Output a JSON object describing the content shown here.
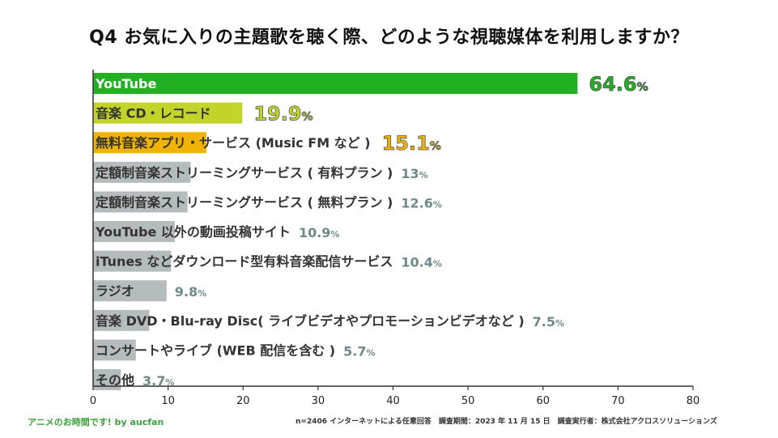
{
  "title": "Q4 お気に入りの主題歌を聴く際、どのような視聴媒体を利用しますか？",
  "footer": {
    "credit": "アニメのお時間です! by aucfan",
    "note": "n=2406 インターネットによる任意回答　調査期間：2023 年 11 月 15 日　調査実行者：株式会社アクロスソリューションズ"
  },
  "colors": {
    "top1": "#22b022",
    "top2": "#c2d42a",
    "top3": "#f0b400",
    "other": "#b5bcbd",
    "value_other": "#6f8a8a",
    "axis": "#333333"
  },
  "chart_data": {
    "type": "bar",
    "orientation": "horizontal",
    "title": "Q4 お気に入りの主題歌を聴く際、どのような視聴媒体を利用しますか？",
    "categories": [
      "YouTube",
      "音楽 CD・レコード",
      "無料音楽アプリ・サービス (Music FM など )",
      "定額制音楽ストリーミングサービス ( 有料プラン )",
      "定額制音楽ストリーミングサービス ( 無料プラン )",
      "YouTube 以外の動画投稿サイト",
      "iTunes などダウンロード型有料音楽配信サービス",
      "ラジオ",
      "音楽 DVD・Blu-ray Disc( ライブビデオやプロモーションビデオなど )",
      "コンサートやライブ (WEB 配信を含む )",
      "その他"
    ],
    "values": [
      64.6,
      19.9,
      15.1,
      13,
      12.6,
      10.9,
      10.4,
      9.8,
      7.5,
      5.7,
      3.7
    ],
    "value_labels": [
      "64.6",
      "19.9",
      "15.1",
      "13",
      "12.6",
      "10.9",
      "10.4",
      "9.8",
      "7.5",
      "5.7",
      "3.7"
    ],
    "unit": "%",
    "xlim": [
      0,
      80
    ],
    "ticks": [
      0,
      10,
      20,
      30,
      40,
      50,
      60,
      70,
      80
    ],
    "grid": false
  }
}
